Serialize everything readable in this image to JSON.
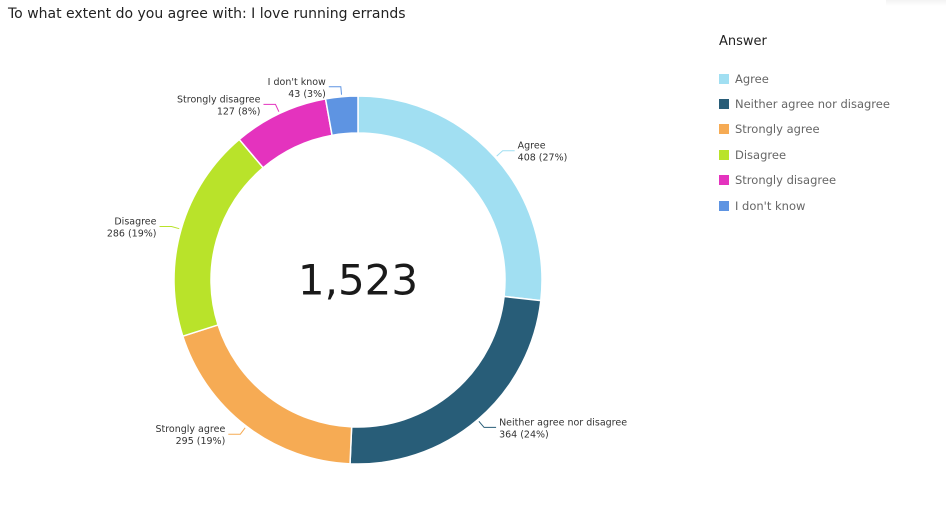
{
  "title": "To what extent do you agree with: I love running errands",
  "chart_data": {
    "type": "pie",
    "donut": true,
    "center_label": "1,523",
    "legend_title": "Answer",
    "legend_position": "right",
    "slices": [
      {
        "name": "Agree",
        "value": 408,
        "percent_label": "27%",
        "value_label": "408 (27%)",
        "color": "#a1dff2"
      },
      {
        "name": "Neither agree nor disagree",
        "value": 364,
        "percent_label": "24%",
        "value_label": "364 (24%)",
        "color": "#285d78"
      },
      {
        "name": "Strongly agree",
        "value": 295,
        "percent_label": "19%",
        "value_label": "295 (19%)",
        "color": "#f6ab54"
      },
      {
        "name": "Disagree",
        "value": 286,
        "percent_label": "19%",
        "value_label": "286 (19%)",
        "color": "#b9e32a"
      },
      {
        "name": "Strongly disagree",
        "value": 127,
        "percent_label": "8%",
        "value_label": "127 (8%)",
        "color": "#e433be"
      },
      {
        "name": "I don't know",
        "value": 43,
        "percent_label": "3%",
        "value_label": "43 (3%)",
        "color": "#5e94e2"
      }
    ]
  }
}
